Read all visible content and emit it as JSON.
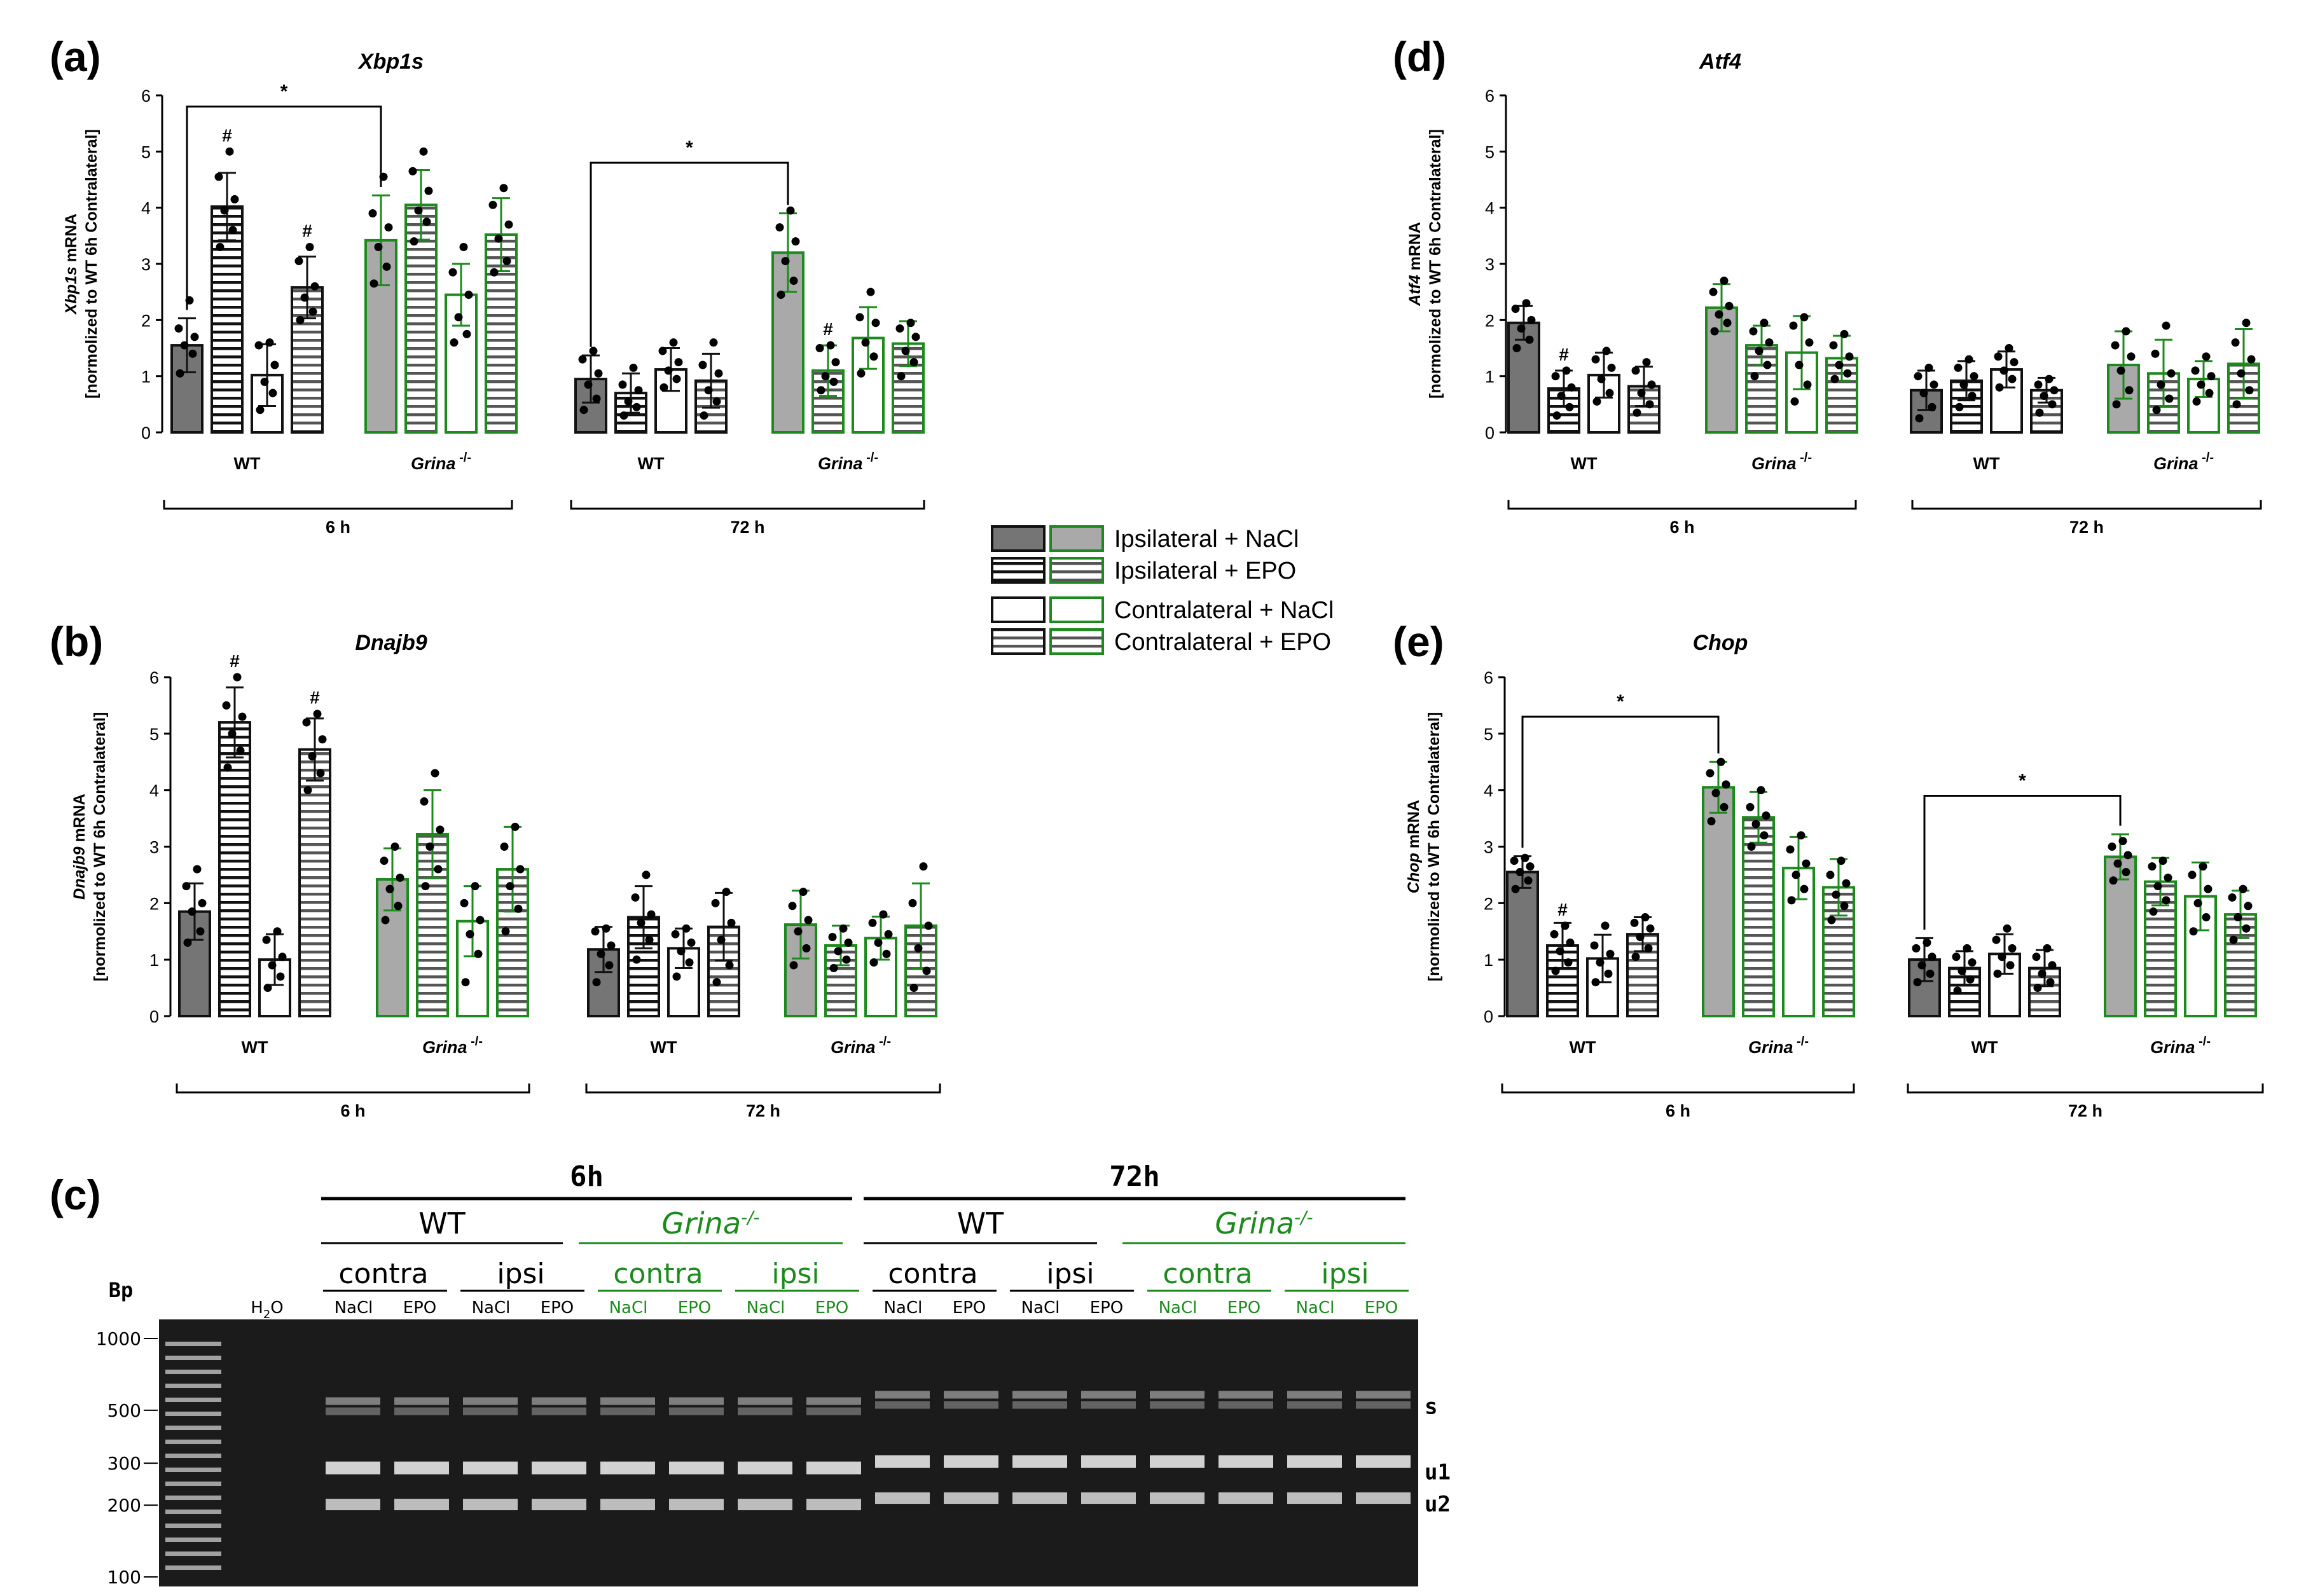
{
  "colors": {
    "dark_bar": "#757575",
    "light_bar": "#a9a9a9",
    "green": "#1c8a1c",
    "black": "#111111",
    "gel_bg": "#1b1b1b",
    "band": "#e6e6e6"
  },
  "panel_labels": {
    "a": "(a)",
    "b": "(b)",
    "c": "(c)",
    "d": "(d)",
    "e": "(e)"
  },
  "legend": {
    "items": [
      {
        "label": "Ipsilateral + NaCl",
        "key": "ipsi_nacl"
      },
      {
        "label": "Ipsilateral + EPO",
        "key": "ipsi_epo"
      },
      {
        "label": "Contralateral + NaCl",
        "key": "contra_nacl"
      },
      {
        "label": "Contralateral + EPO",
        "key": "contra_epo"
      }
    ]
  },
  "chart_data": [
    {
      "id": "a",
      "type": "bar",
      "title": "Xbp1s",
      "ylabel_gene": "Xbp1s",
      "ylabel_rest": " mRNA",
      "ylabel_sub": "[normolized to WT 6h Contralateral]",
      "ylim": [
        0,
        6
      ],
      "yticks": [
        "0",
        "1",
        "2",
        "3",
        "4",
        "5",
        "6"
      ],
      "genotype_labels": [
        "WT",
        "Grina",
        "WT",
        "Grina"
      ],
      "genotype_sup": "-/-",
      "timepoints": [
        "6 h",
        "72 h"
      ],
      "series_order": [
        "Ipsilateral + NaCl",
        "Ipsilateral + EPO",
        "Contralateral + NaCl",
        "Contralateral + EPO"
      ],
      "means": [
        [
          1.55,
          4.02,
          1.02,
          2.58
        ],
        [
          3.42,
          4.05,
          2.45,
          3.52
        ],
        [
          0.95,
          0.7,
          1.12,
          0.92
        ],
        [
          3.2,
          1.1,
          1.68,
          1.58
        ]
      ],
      "errors": [
        [
          0.48,
          0.6,
          0.55,
          0.55
        ],
        [
          0.8,
          0.62,
          0.55,
          0.65
        ],
        [
          0.42,
          0.35,
          0.38,
          0.48
        ],
        [
          0.7,
          0.45,
          0.55,
          0.4
        ]
      ],
      "points": [
        [
          [
            1.05,
            1.4,
            1.55,
            1.7,
            1.85,
            2.35
          ],
          [
            3.3,
            3.6,
            3.95,
            4.15,
            4.55,
            5.0
          ],
          [
            0.4,
            0.7,
            0.9,
            1.2,
            1.55,
            1.6
          ],
          [
            2.0,
            2.15,
            2.4,
            2.6,
            3.05,
            3.3
          ]
        ],
        [
          [
            2.65,
            2.95,
            3.3,
            3.65,
            3.9,
            4.55
          ],
          [
            3.4,
            3.75,
            3.95,
            4.3,
            4.65,
            5.0
          ],
          [
            1.6,
            1.75,
            2.05,
            2.45,
            2.85,
            3.3
          ],
          [
            2.85,
            3.05,
            3.45,
            3.7,
            4.05,
            4.35
          ]
        ],
        [
          [
            0.4,
            0.6,
            0.85,
            1.05,
            1.3,
            1.45
          ],
          [
            0.3,
            0.45,
            0.55,
            0.75,
            0.85,
            1.15
          ],
          [
            0.8,
            0.95,
            1.1,
            1.25,
            1.45,
            1.6
          ],
          [
            0.3,
            0.55,
            0.75,
            1.05,
            1.2,
            1.6
          ]
        ],
        [
          [
            2.45,
            2.7,
            3.05,
            3.4,
            3.65,
            3.95
          ],
          [
            0.75,
            0.9,
            1.0,
            1.25,
            1.5,
            1.55
          ],
          [
            1.05,
            1.35,
            1.6,
            1.95,
            2.05,
            2.5
          ],
          [
            1.0,
            1.25,
            1.45,
            1.7,
            1.85,
            1.95
          ]
        ]
      ],
      "hash_marks": [
        [
          0,
          1
        ],
        [
          0,
          3
        ],
        [
          3,
          1
        ]
      ],
      "brackets": [
        {
          "from": [
            0,
            0
          ],
          "to": [
            1,
            0
          ],
          "y": 5.8,
          "label": "*"
        },
        {
          "from": [
            2,
            0
          ],
          "to": [
            3,
            0
          ],
          "y": 4.8,
          "label": "*"
        }
      ]
    },
    {
      "id": "b",
      "type": "bar",
      "title": "Dnajb9",
      "ylabel_gene": "Dnajb9",
      "ylabel_rest": " mRNA",
      "ylabel_sub": "[normolized to WT 6h Contralateral]",
      "ylim": [
        0,
        6
      ],
      "yticks": [
        "0",
        "1",
        "2",
        "3",
        "4",
        "5",
        "6"
      ],
      "genotype_labels": [
        "WT",
        "Grina",
        "WT",
        "Grina"
      ],
      "genotype_sup": "-/-",
      "timepoints": [
        "6 h",
        "72 h"
      ],
      "series_order": [
        "Ipsilateral + NaCl",
        "Ipsilateral + EPO",
        "Contralateral + NaCl",
        "Contralateral + EPO"
      ],
      "means": [
        [
          1.85,
          5.2,
          1.0,
          4.72
        ],
        [
          2.42,
          3.22,
          1.68,
          2.6
        ],
        [
          1.18,
          1.75,
          1.2,
          1.58
        ],
        [
          1.62,
          1.25,
          1.38,
          1.6
        ]
      ],
      "errors": [
        [
          0.5,
          0.62,
          0.45,
          0.55
        ],
        [
          0.55,
          0.78,
          0.62,
          0.75
        ],
        [
          0.4,
          0.55,
          0.35,
          0.6
        ],
        [
          0.6,
          0.35,
          0.38,
          0.75
        ]
      ],
      "points": [
        [
          [
            1.3,
            1.5,
            1.85,
            2.0,
            2.3,
            2.6
          ],
          [
            4.4,
            4.7,
            5.0,
            5.3,
            5.5,
            6.0
          ],
          [
            0.5,
            0.7,
            0.9,
            1.05,
            1.35,
            1.5
          ],
          [
            4.0,
            4.3,
            4.6,
            4.9,
            5.2,
            5.35
          ]
        ],
        [
          [
            1.7,
            1.95,
            2.25,
            2.45,
            2.75,
            3.0
          ],
          [
            2.3,
            2.6,
            3.0,
            3.3,
            3.8,
            4.3
          ],
          [
            0.6,
            1.1,
            1.45,
            1.7,
            2.0,
            2.3
          ],
          [
            1.5,
            1.9,
            2.3,
            2.6,
            3.0,
            3.35
          ]
        ],
        [
          [
            0.6,
            0.9,
            1.1,
            1.25,
            1.5,
            1.55
          ],
          [
            1.0,
            1.35,
            1.65,
            1.8,
            2.1,
            2.5
          ],
          [
            0.7,
            0.95,
            1.15,
            1.3,
            1.45,
            1.55
          ],
          [
            0.6,
            0.9,
            1.35,
            1.65,
            2.0,
            2.2
          ]
        ],
        [
          [
            0.9,
            1.2,
            1.5,
            1.7,
            1.95,
            2.2
          ],
          [
            0.85,
            1.0,
            1.15,
            1.3,
            1.4,
            1.55
          ],
          [
            0.95,
            1.1,
            1.3,
            1.45,
            1.65,
            1.8
          ],
          [
            0.5,
            0.8,
            1.2,
            1.6,
            2.0,
            2.65
          ]
        ]
      ],
      "hash_marks": [
        [
          0,
          1
        ],
        [
          0,
          3
        ]
      ],
      "brackets": []
    },
    {
      "id": "d",
      "type": "bar",
      "title": "Atf4",
      "ylabel_gene": "Atf4",
      "ylabel_rest": " mRNA",
      "ylabel_sub": "[normolized to WT 6h Contralateral]",
      "ylim": [
        0,
        6
      ],
      "yticks": [
        "0",
        "1",
        "2",
        "3",
        "4",
        "5",
        "6"
      ],
      "genotype_labels": [
        "WT",
        "Grina",
        "WT",
        "Grina"
      ],
      "genotype_sup": "-/-",
      "timepoints": [
        "6 h",
        "72 h"
      ],
      "series_order": [
        "Ipsilateral + NaCl",
        "Ipsilateral + EPO",
        "Contralateral + NaCl",
        "Contralateral + EPO"
      ],
      "means": [
        [
          1.95,
          0.78,
          1.02,
          0.82
        ],
        [
          2.22,
          1.55,
          1.42,
          1.32
        ],
        [
          0.75,
          0.92,
          1.12,
          0.75
        ],
        [
          1.2,
          1.05,
          0.95,
          1.22
        ]
      ],
      "errors": [
        [
          0.3,
          0.32,
          0.4,
          0.35
        ],
        [
          0.42,
          0.35,
          0.65,
          0.4
        ],
        [
          0.35,
          0.35,
          0.32,
          0.22
        ],
        [
          0.6,
          0.6,
          0.32,
          0.62
        ]
      ],
      "points": [
        [
          [
            1.5,
            1.65,
            1.85,
            2.0,
            2.2,
            2.3
          ],
          [
            0.3,
            0.45,
            0.65,
            0.8,
            1.0,
            1.1
          ],
          [
            0.55,
            0.7,
            0.95,
            1.15,
            1.3,
            1.45
          ],
          [
            0.35,
            0.5,
            0.7,
            0.85,
            1.1,
            1.25
          ]
        ],
        [
          [
            1.8,
            1.95,
            2.1,
            2.25,
            2.5,
            2.7
          ],
          [
            1.0,
            1.2,
            1.45,
            1.6,
            1.8,
            1.95
          ],
          [
            0.55,
            0.85,
            1.2,
            1.6,
            1.9,
            2.05
          ],
          [
            0.95,
            1.05,
            1.2,
            1.35,
            1.55,
            1.75
          ]
        ],
        [
          [
            0.25,
            0.45,
            0.7,
            0.85,
            1.0,
            1.15
          ],
          [
            0.45,
            0.65,
            0.85,
            1.0,
            1.15,
            1.3
          ],
          [
            0.8,
            0.95,
            1.1,
            1.25,
            1.35,
            1.5
          ],
          [
            0.35,
            0.5,
            0.65,
            0.75,
            0.85,
            0.95
          ]
        ],
        [
          [
            0.5,
            0.75,
            1.1,
            1.35,
            1.55,
            1.8
          ],
          [
            0.4,
            0.6,
            0.85,
            1.05,
            1.4,
            1.9
          ],
          [
            0.55,
            0.7,
            0.85,
            1.0,
            1.1,
            1.35
          ],
          [
            0.5,
            0.75,
            1.05,
            1.3,
            1.6,
            1.95
          ]
        ]
      ],
      "hash_marks": [
        [
          0,
          1
        ]
      ],
      "brackets": []
    },
    {
      "id": "e",
      "type": "bar",
      "title": "Chop",
      "ylabel_gene": "Chop",
      "ylabel_rest": " mRNA",
      "ylabel_sub": "[normolized to WT 6h Contralateral]",
      "ylim": [
        0,
        6
      ],
      "yticks": [
        "0",
        "1",
        "2",
        "3",
        "4",
        "5",
        "6"
      ],
      "genotype_labels": [
        "WT",
        "Grina",
        "WT",
        "Grina"
      ],
      "genotype_sup": "-/-",
      "timepoints": [
        "6 h",
        "72 h"
      ],
      "series_order": [
        "Ipsilateral + NaCl",
        "Ipsilateral + EPO",
        "Contralateral + NaCl",
        "Contralateral + EPO"
      ],
      "means": [
        [
          2.55,
          1.25,
          1.02,
          1.45
        ],
        [
          4.05,
          3.52,
          2.62,
          2.28
        ],
        [
          1.0,
          0.85,
          1.1,
          0.85
        ],
        [
          2.82,
          2.38,
          2.12,
          1.8
        ]
      ],
      "errors": [
        [
          0.28,
          0.4,
          0.42,
          0.3
        ],
        [
          0.45,
          0.45,
          0.55,
          0.5
        ],
        [
          0.38,
          0.3,
          0.35,
          0.32
        ],
        [
          0.4,
          0.42,
          0.6,
          0.42
        ]
      ],
      "points": [
        [
          [
            2.25,
            2.4,
            2.55,
            2.65,
            2.75,
            2.8
          ],
          [
            0.8,
            0.95,
            1.15,
            1.3,
            1.45,
            1.6
          ],
          [
            0.6,
            0.75,
            0.95,
            1.1,
            1.25,
            1.6
          ],
          [
            1.05,
            1.2,
            1.4,
            1.55,
            1.65,
            1.75
          ]
        ],
        [
          [
            3.45,
            3.7,
            3.95,
            4.1,
            4.3,
            4.5
          ],
          [
            3.0,
            3.2,
            3.4,
            3.55,
            3.7,
            4.0
          ],
          [
            2.05,
            2.25,
            2.5,
            2.7,
            2.95,
            3.2
          ],
          [
            1.7,
            1.95,
            2.15,
            2.35,
            2.5,
            2.75
          ]
        ],
        [
          [
            0.6,
            0.75,
            0.9,
            1.05,
            1.2,
            1.3
          ],
          [
            0.45,
            0.65,
            0.8,
            0.95,
            1.05,
            1.2
          ],
          [
            0.75,
            0.9,
            1.05,
            1.2,
            1.35,
            1.55
          ],
          [
            0.5,
            0.6,
            0.75,
            0.9,
            1.05,
            1.2
          ]
        ],
        [
          [
            2.4,
            2.55,
            2.7,
            2.85,
            3.0,
            3.1
          ],
          [
            1.85,
            2.05,
            2.3,
            2.45,
            2.65,
            2.75
          ],
          [
            1.5,
            1.75,
            2.0,
            2.25,
            2.5,
            2.65
          ],
          [
            1.35,
            1.55,
            1.75,
            1.95,
            2.1,
            2.25
          ]
        ]
      ],
      "hash_marks": [
        [
          0,
          1
        ]
      ],
      "brackets": [
        {
          "from": [
            0,
            0
          ],
          "to": [
            1,
            0
          ],
          "y": 5.3,
          "label": "*"
        },
        {
          "from": [
            2,
            0
          ],
          "to": [
            3,
            0
          ],
          "y": 3.9,
          "label": "*"
        }
      ]
    }
  ],
  "gel": {
    "timepoints": [
      "6h",
      "72h"
    ],
    "genotypes": [
      {
        "label": "WT",
        "sup": "",
        "green": false
      },
      {
        "label": "Grina",
        "sup": "-/-",
        "green": true
      },
      {
        "label": "WT",
        "sup": "",
        "green": false
      },
      {
        "label": "Grina",
        "sup": "-/-",
        "green": true
      }
    ],
    "sides": [
      "contra",
      "ipsi",
      "contra",
      "ipsi",
      "contra",
      "ipsi",
      "contra",
      "ipsi"
    ],
    "treatments": [
      "NaCl",
      "EPO"
    ],
    "bp_label": "Bp",
    "h2o_main": "H",
    "h2o_sub": "2",
    "h2o_end": "O",
    "markers": [
      "1000",
      "500",
      "300",
      "200",
      "100"
    ],
    "marker_bp": [
      1000,
      500,
      300,
      200,
      100
    ],
    "band_labels": [
      "s",
      "u1",
      "u2"
    ]
  }
}
